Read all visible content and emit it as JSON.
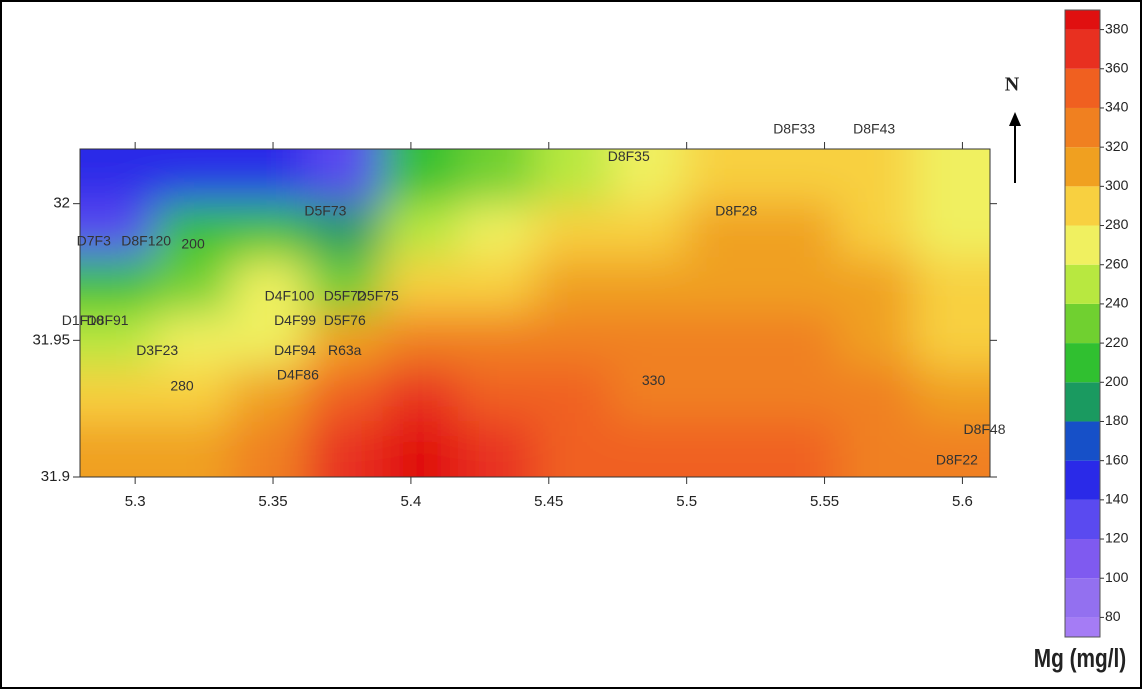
{
  "chart_data": {
    "type": "contour",
    "xlim": [
      5.28,
      5.61
    ],
    "ylim": [
      31.9,
      32.02
    ],
    "xticks": [
      5.3,
      5.35,
      5.4,
      5.45,
      5.5,
      5.55,
      5.6
    ],
    "yticks": [
      31.9,
      31.95,
      32
    ],
    "grid_x": [
      5.29375,
      5.32125,
      5.34875,
      5.37625,
      5.40375,
      5.43125,
      5.45875,
      5.48625,
      5.51375,
      5.54125,
      5.56875,
      5.59625
    ],
    "grid_y": [
      32.01,
      31.99,
      31.97,
      31.95,
      31.93,
      31.91
    ],
    "z": [
      [
        140,
        150,
        150,
        130,
        200,
        230,
        250,
        270,
        285,
        295,
        290,
        270
      ],
      [
        120,
        200,
        210,
        190,
        240,
        260,
        280,
        290,
        300,
        300,
        295,
        275
      ],
      [
        210,
        230,
        260,
        230,
        280,
        290,
        300,
        305,
        310,
        310,
        300,
        280
      ],
      [
        250,
        270,
        270,
        310,
        330,
        325,
        325,
        325,
        320,
        320,
        310,
        290
      ],
      [
        280,
        290,
        300,
        340,
        360,
        345,
        340,
        330,
        330,
        330,
        320,
        310
      ],
      [
        300,
        315,
        330,
        370,
        380,
        365,
        355,
        350,
        345,
        340,
        335,
        330
      ]
    ],
    "contour_labels": [
      {
        "value": 200,
        "x": 5.321,
        "y": 31.985
      },
      {
        "value": 280,
        "x": 5.317,
        "y": 31.933
      },
      {
        "value": 330,
        "x": 5.488,
        "y": 31.935
      }
    ],
    "wells": [
      {
        "name": "D8F33",
        "x": 5.539,
        "y": 32.027
      },
      {
        "name": "D8F43",
        "x": 5.568,
        "y": 32.027
      },
      {
        "name": "D8F35",
        "x": 5.479,
        "y": 32.017
      },
      {
        "name": "D5F73",
        "x": 5.369,
        "y": 31.997
      },
      {
        "name": "D8F28",
        "x": 5.518,
        "y": 31.997
      },
      {
        "name": "D7F3",
        "x": 5.285,
        "y": 31.986
      },
      {
        "name": "D8F120",
        "x": 5.304,
        "y": 31.986
      },
      {
        "name": "D4F100",
        "x": 5.356,
        "y": 31.966
      },
      {
        "name": "D5F72",
        "x": 5.376,
        "y": 31.966
      },
      {
        "name": "D5F75",
        "x": 5.388,
        "y": 31.966
      },
      {
        "name": "D1F10",
        "x": 5.281,
        "y": 31.957
      },
      {
        "name": "D8F91",
        "x": 5.29,
        "y": 31.957
      },
      {
        "name": "D4F99",
        "x": 5.358,
        "y": 31.957
      },
      {
        "name": "D5F76",
        "x": 5.376,
        "y": 31.957
      },
      {
        "name": "D3F23",
        "x": 5.308,
        "y": 31.946
      },
      {
        "name": "D4F94",
        "x": 5.358,
        "y": 31.946
      },
      {
        "name": "R63a",
        "x": 5.376,
        "y": 31.946
      },
      {
        "name": "D4F86",
        "x": 5.359,
        "y": 31.937
      },
      {
        "name": "D8F48",
        "x": 5.608,
        "y": 31.917
      },
      {
        "name": "D8F22",
        "x": 5.598,
        "y": 31.906
      }
    ],
    "north": "N",
    "colorbar": {
      "title": "Mg (mg/l)",
      "lim": [
        70,
        390
      ],
      "levels": [
        80,
        100,
        120,
        140,
        160,
        180,
        200,
        220,
        240,
        260,
        280,
        300,
        320,
        340,
        360,
        380
      ],
      "colors": [
        "#a57cf5",
        "#9370f0",
        "#7f5af0",
        "#5a4af0",
        "#2a2ae8",
        "#1650c8",
        "#1a9a60",
        "#30c030",
        "#70d030",
        "#b8e840",
        "#f0f060",
        "#f8d040",
        "#f0a020",
        "#f08020",
        "#f06020",
        "#e83020",
        "#e01010"
      ]
    }
  }
}
